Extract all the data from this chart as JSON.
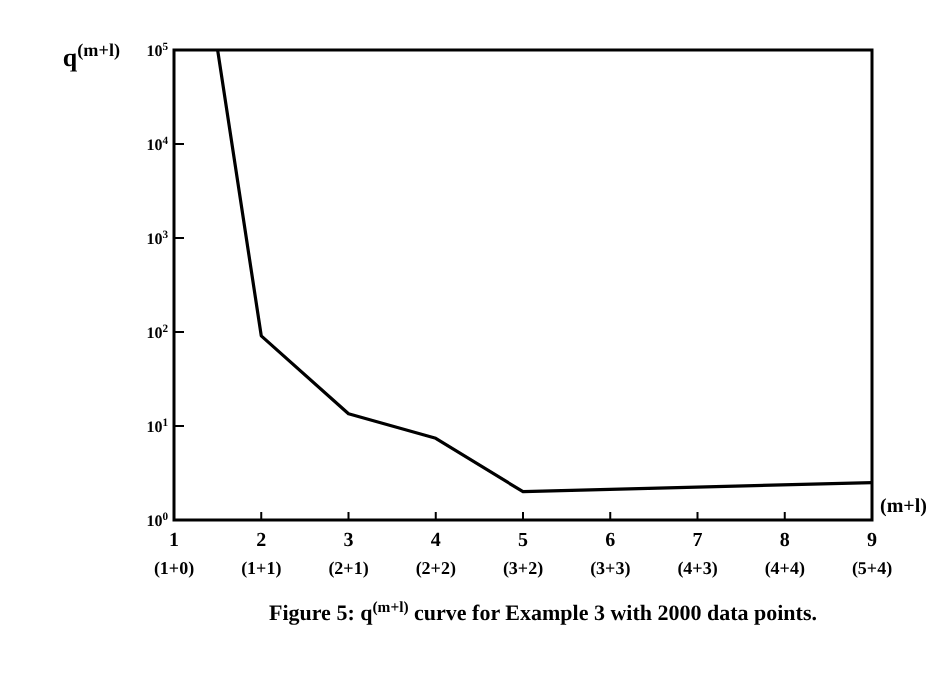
{
  "chart_data": {
    "type": "line",
    "ylabel": "q$^{(m+l)}$",
    "xlabel": "(m+l)",
    "log": "y",
    "x": [
      1.5,
      2,
      3,
      4,
      5,
      9
    ],
    "series": [
      {
        "color": "#000000",
        "values": [
          100000,
          91,
          13.5,
          7.4,
          2,
          2.5
        ]
      }
    ],
    "xlim": [
      1,
      9
    ],
    "ylim": [
      1,
      100000
    ],
    "xticks": [
      1,
      2,
      3,
      4,
      5,
      6,
      7,
      8,
      9
    ],
    "yticks": [
      {
        "value": 1,
        "label": "10$^{0}$"
      },
      {
        "value": 10,
        "label": "10$^{1}$"
      },
      {
        "value": 100,
        "label": "10$^{2}$"
      },
      {
        "value": 1000,
        "label": "10$^{3}$"
      },
      {
        "value": 10000,
        "label": "10$^{4}$"
      },
      {
        "value": 100000,
        "label": "10$^{5}$"
      }
    ],
    "grid": false,
    "marker": "none",
    "line_style": "solid",
    "annotations": [
      "Figure 5: q$^{(m+l)}$ curve for Example 3 with 2000 data points.",
      "(1+0)",
      "(1+1)",
      "(2+1)",
      "(2+2)",
      "(3+2)",
      "(3+3)",
      "(4+3)",
      "(4+4)",
      "(5+4)"
    ]
  }
}
